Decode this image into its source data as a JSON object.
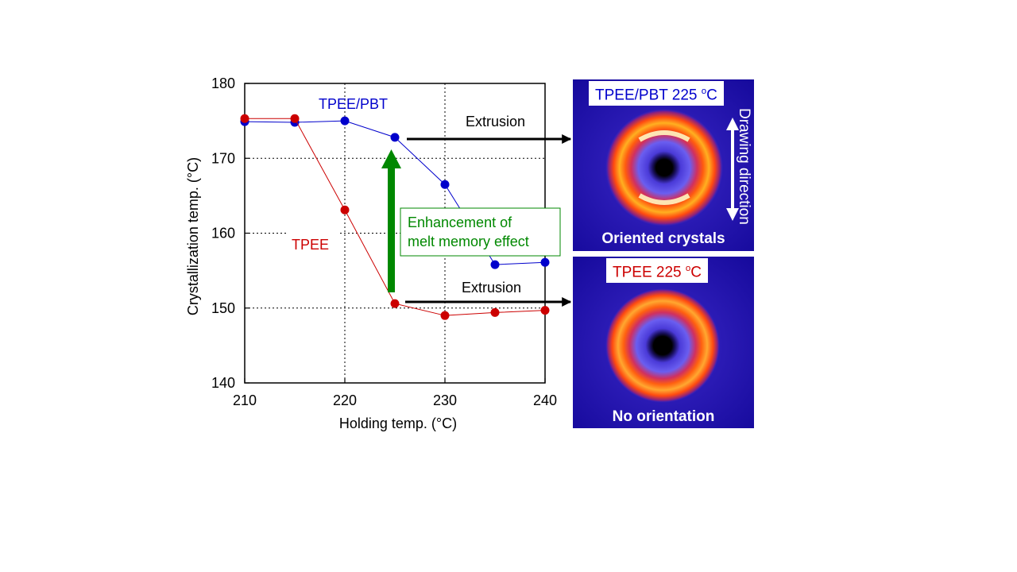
{
  "chart_data": {
    "type": "line",
    "xlabel": "Holding temp. (°C)",
    "ylabel": "Crystallization temp. (°C)",
    "xlim": [
      210,
      240
    ],
    "ylim": [
      140,
      180
    ],
    "xticks": [
      210,
      220,
      230,
      240
    ],
    "yticks": [
      140,
      150,
      160,
      170,
      180
    ],
    "grid": "dotted",
    "series": [
      {
        "name": "TPEE/PBT",
        "color": "#0000cc",
        "x": [
          210,
          215,
          220,
          225,
          230,
          235,
          240
        ],
        "y": [
          174.9,
          174.8,
          175.0,
          172.8,
          166.5,
          155.8,
          156.1
        ]
      },
      {
        "name": "TPEE",
        "color": "#cc0000",
        "x": [
          210,
          215,
          220,
          225,
          230,
          235,
          240
        ],
        "y": [
          175.3,
          175.3,
          163.1,
          150.6,
          149.0,
          149.4,
          149.7
        ]
      }
    ],
    "annotations": {
      "extrusion_label": "Extrusion",
      "enhancement_line1": "Enhancement of",
      "enhancement_line2": "melt memory effect",
      "enhancement_color": "#008800"
    }
  },
  "panels": {
    "top": {
      "label": "TPEE/PBT 225",
      "label_unit": "C",
      "label_color": "#0000cc",
      "bottom_text": "Oriented crystals",
      "side_text": "Drawing direction"
    },
    "bottom": {
      "label": "TPEE 225",
      "label_unit": "C",
      "label_color": "#cc0000",
      "bottom_text": "No orientation"
    }
  }
}
